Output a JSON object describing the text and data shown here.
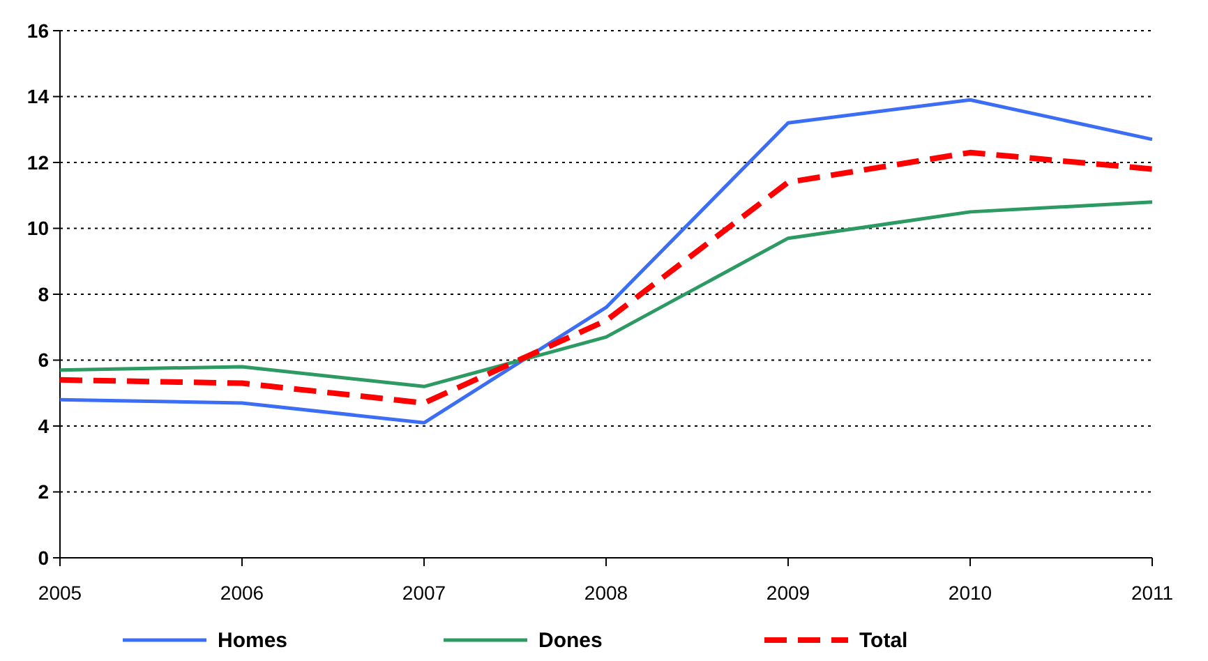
{
  "chart_data": {
    "type": "line",
    "categories": [
      "2005",
      "2006",
      "2007",
      "2008",
      "2009",
      "2010",
      "2011"
    ],
    "series": [
      {
        "name": "Homes",
        "color": "#3b6ef5",
        "line_style": "solid",
        "values": [
          4.8,
          4.7,
          4.1,
          7.6,
          13.2,
          13.9,
          12.7
        ]
      },
      {
        "name": "Dones",
        "color": "#2e9a63",
        "line_style": "solid",
        "values": [
          5.7,
          5.8,
          5.2,
          6.7,
          9.7,
          10.5,
          10.8
        ]
      },
      {
        "name": "Total",
        "color": "#ff0000",
        "line_style": "dashed",
        "values": [
          5.4,
          5.3,
          4.7,
          7.2,
          11.4,
          12.3,
          11.8
        ]
      }
    ],
    "ylim": [
      0,
      16
    ],
    "yticks": [
      0,
      2,
      4,
      6,
      8,
      10,
      12,
      14,
      16
    ],
    "grid": "y",
    "legend": "bottom",
    "marker": "none"
  }
}
